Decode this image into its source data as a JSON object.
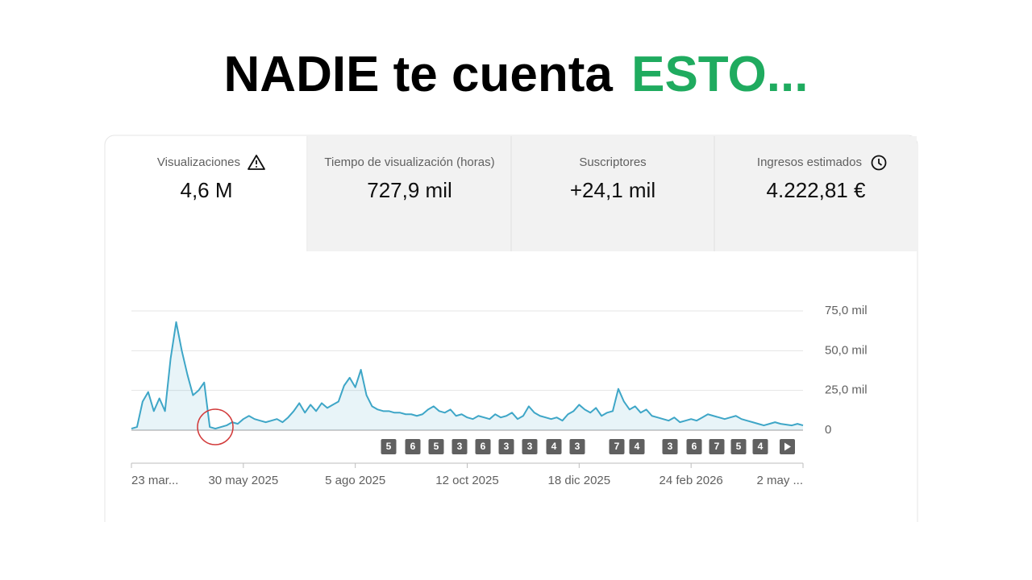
{
  "headline": {
    "text": "NADIE te cuenta",
    "highlight": "ESTO..."
  },
  "tabs": [
    {
      "label": "Visualizaciones",
      "value": "4,6 M"
    },
    {
      "label": "Tiempo de visualización (horas)",
      "value": "727,9 mil"
    },
    {
      "label": "Suscriptores",
      "value": "+24,1 mil"
    },
    {
      "label": "Ingresos estimados",
      "value": "4.222,81 €"
    }
  ],
  "chart_data": {
    "type": "line",
    "categories": [
      "23 mar...",
      null,
      null,
      null,
      null,
      null,
      null,
      null,
      null,
      null,
      null,
      null,
      null,
      null,
      null,
      null,
      null,
      null,
      null,
      null,
      "30 may 2025",
      null,
      null,
      null,
      null,
      null,
      null,
      null,
      null,
      null,
      null,
      null,
      null,
      null,
      null,
      null,
      null,
      null,
      null,
      null,
      "5 ago 2025",
      null,
      null,
      null,
      null,
      null,
      null,
      null,
      null,
      null,
      null,
      null,
      null,
      null,
      null,
      null,
      null,
      null,
      null,
      null,
      "12 oct 2025",
      null,
      null,
      null,
      null,
      null,
      null,
      null,
      null,
      null,
      null,
      null,
      null,
      null,
      null,
      null,
      null,
      null,
      null,
      null,
      "18 dic 2025",
      null,
      null,
      null,
      null,
      null,
      null,
      null,
      null,
      null,
      null,
      null,
      null,
      null,
      null,
      null,
      null,
      null,
      null,
      null,
      "24 feb 2026",
      null,
      null,
      null,
      null,
      null,
      null,
      null,
      null,
      null,
      null,
      null,
      null,
      null,
      null,
      null,
      null,
      null,
      null,
      null,
      "2 may ..."
    ],
    "values": [
      1000,
      2000,
      18000,
      24000,
      12000,
      20000,
      12000,
      45000,
      68000,
      50000,
      35000,
      22000,
      25000,
      30000,
      2000,
      1000,
      2000,
      3000,
      5000,
      4000,
      7000,
      9000,
      7000,
      6000,
      5000,
      6000,
      7000,
      5000,
      8000,
      12000,
      17000,
      11000,
      16000,
      12000,
      17000,
      14000,
      16000,
      18000,
      28000,
      33000,
      27000,
      38000,
      22000,
      15000,
      13000,
      12000,
      12000,
      11000,
      11000,
      10000,
      10000,
      9000,
      10000,
      13000,
      15000,
      12000,
      11000,
      13000,
      9000,
      10000,
      8000,
      7000,
      9000,
      8000,
      7000,
      10000,
      8000,
      9000,
      11000,
      7000,
      9000,
      15000,
      11000,
      9000,
      8000,
      7000,
      8000,
      6000,
      10000,
      12000,
      16000,
      13000,
      11000,
      14000,
      9000,
      11000,
      12000,
      26000,
      18000,
      13000,
      15000,
      11000,
      13000,
      9000,
      8000,
      7000,
      6000,
      8000,
      5000,
      6000,
      7000,
      6000,
      8000,
      10000,
      9000,
      8000,
      7000,
      8000,
      9000,
      7000,
      6000,
      5000,
      4000,
      3000,
      4000,
      5000,
      4000,
      3500,
      3000,
      4000,
      3000
    ],
    "color": "#3ea6c7",
    "ylim": [
      0,
      75000
    ],
    "yticks": [
      0,
      {
        "value": 25000,
        "label": "25,0 mil"
      },
      {
        "value": 50000,
        "label": "50,0 mil"
      },
      {
        "value": 75000,
        "label": "75,0 mil"
      }
    ],
    "grid": true,
    "annotations": [
      "5",
      "6",
      "5",
      "3",
      "6",
      "3",
      "3",
      "4",
      "3",
      "7",
      "4",
      "3",
      "6",
      "7",
      "5",
      "4"
    ]
  }
}
